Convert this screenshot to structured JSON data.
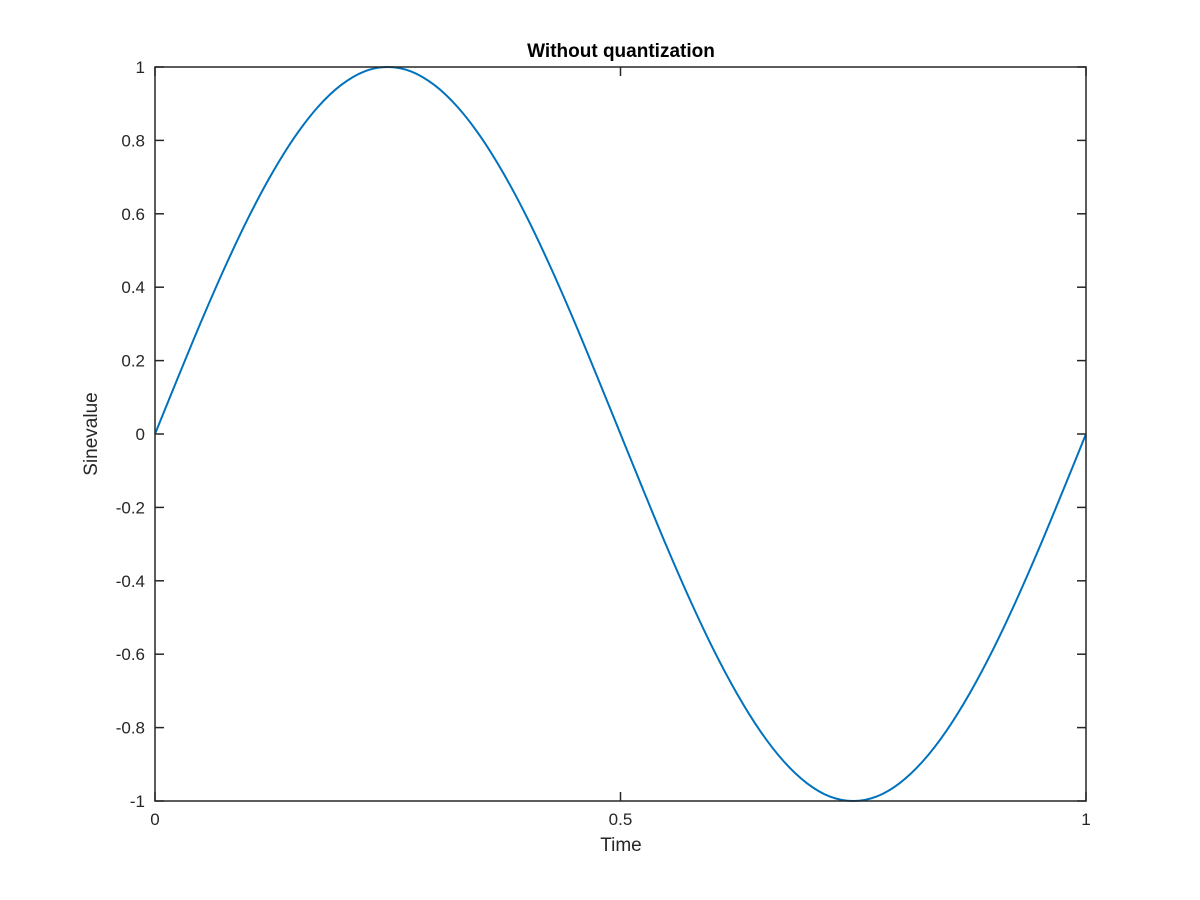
{
  "chart_data": {
    "type": "line",
    "title": "Without quantization",
    "xlabel": "Time",
    "ylabel": "Sinevalue",
    "xlim": [
      0,
      1
    ],
    "ylim": [
      -1,
      1
    ],
    "x_ticks": [
      0,
      0.5,
      1
    ],
    "x_tick_labels": [
      "0",
      "0.5",
      "1"
    ],
    "y_ticks": [
      1,
      0.8,
      0.6,
      0.4,
      0.2,
      0,
      -0.2,
      -0.4,
      -0.6,
      -0.8,
      -1
    ],
    "y_tick_labels": [
      "1",
      "0.8",
      "0.6",
      "0.4",
      "0.2",
      "0",
      "-0.2",
      "-0.4",
      "-0.6",
      "-0.8",
      "-1"
    ],
    "grid": false,
    "series": [
      {
        "color": "#0072BD",
        "x": [
          0,
          0.025,
          0.05,
          0.075,
          0.1,
          0.125,
          0.15,
          0.175,
          0.2,
          0.225,
          0.25,
          0.275,
          0.3,
          0.325,
          0.35,
          0.375,
          0.4,
          0.425,
          0.45,
          0.475,
          0.5,
          0.525,
          0.55,
          0.575,
          0.6,
          0.625,
          0.65,
          0.675,
          0.7,
          0.725,
          0.75,
          0.775,
          0.8,
          0.825,
          0.85,
          0.875,
          0.9,
          0.925,
          0.95,
          0.975,
          1
        ],
        "y": [
          0,
          0.156,
          0.309,
          0.454,
          0.588,
          0.707,
          0.809,
          0.891,
          0.951,
          0.988,
          1,
          0.988,
          0.951,
          0.891,
          0.809,
          0.707,
          0.588,
          0.454,
          0.309,
          0.156,
          0,
          -0.156,
          -0.309,
          -0.454,
          -0.588,
          -0.707,
          -0.809,
          -0.891,
          -0.951,
          -0.988,
          -1,
          -0.988,
          -0.951,
          -0.891,
          -0.809,
          -0.707,
          -0.588,
          -0.454,
          -0.309,
          -0.156,
          0
        ]
      }
    ]
  }
}
